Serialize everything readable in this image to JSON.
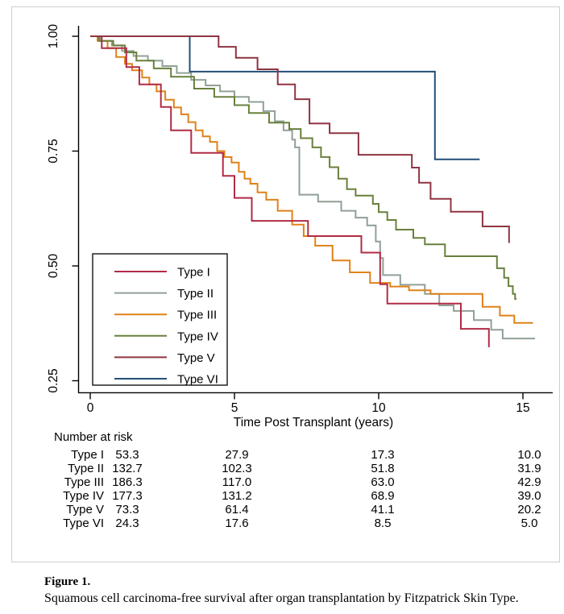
{
  "chart_data": {
    "type": "line",
    "subtype": "kaplan-meier-step",
    "title": "",
    "xlabel": "Time Post Transplant (years)",
    "ylabel": "",
    "xlim": [
      0,
      15.6
    ],
    "ylim": [
      0.22,
      1.02
    ],
    "x_ticks": [
      "0",
      "5",
      "10",
      "15"
    ],
    "x_tick_values": [
      0,
      5,
      10,
      15
    ],
    "y_ticks": [
      "1.00",
      "0.75",
      "0.50",
      "0.25"
    ],
    "y_tick_values": [
      1.0,
      0.75,
      0.5,
      0.25
    ],
    "grid": false,
    "legend_position": "inside-lower-left",
    "series": [
      {
        "name": "Type I",
        "color": "#b12b45",
        "start": [
          0,
          1.0
        ],
        "end": 13.84,
        "steps": [
          [
            0.4,
            0.974
          ],
          [
            1.25,
            0.933
          ],
          [
            1.7,
            0.895
          ],
          [
            2.45,
            0.846
          ],
          [
            2.8,
            0.795
          ],
          [
            3.5,
            0.746
          ],
          [
            4.6,
            0.696
          ],
          [
            5.0,
            0.648
          ],
          [
            5.6,
            0.598
          ],
          [
            7.55,
            0.565
          ],
          [
            9.4,
            0.529
          ],
          [
            10.05,
            0.46
          ],
          [
            10.3,
            0.418
          ],
          [
            12.85,
            0.363
          ],
          [
            13.82,
            0.323
          ]
        ]
      },
      {
        "name": "Type II",
        "color": "#90a096",
        "start": [
          0,
          1.0
        ],
        "end": 15.42,
        "steps": [
          [
            0.35,
            0.99
          ],
          [
            0.75,
            0.98
          ],
          [
            1.1,
            0.968
          ],
          [
            1.5,
            0.957
          ],
          [
            2.0,
            0.947
          ],
          [
            2.5,
            0.935
          ],
          [
            3.0,
            0.92
          ],
          [
            3.5,
            0.905
          ],
          [
            4.0,
            0.893
          ],
          [
            4.5,
            0.88
          ],
          [
            5.0,
            0.868
          ],
          [
            5.5,
            0.857
          ],
          [
            6.0,
            0.837
          ],
          [
            6.4,
            0.815
          ],
          [
            6.7,
            0.795
          ],
          [
            7.0,
            0.775
          ],
          [
            7.1,
            0.758
          ],
          [
            7.25,
            0.655
          ],
          [
            7.9,
            0.64
          ],
          [
            8.7,
            0.62
          ],
          [
            9.2,
            0.605
          ],
          [
            9.6,
            0.588
          ],
          [
            9.9,
            0.553
          ],
          [
            10.05,
            0.517
          ],
          [
            10.15,
            0.48
          ],
          [
            10.75,
            0.459
          ],
          [
            11.6,
            0.439
          ],
          [
            12.1,
            0.414
          ],
          [
            12.6,
            0.402
          ],
          [
            13.3,
            0.382
          ],
          [
            13.9,
            0.361
          ],
          [
            14.3,
            0.342
          ]
        ]
      },
      {
        "name": "Type III",
        "color": "#e08119",
        "start": [
          0,
          1.0
        ],
        "end": 15.35,
        "steps": [
          [
            0.25,
            0.99
          ],
          [
            0.6,
            0.974
          ],
          [
            0.9,
            0.955
          ],
          [
            1.2,
            0.94
          ],
          [
            1.45,
            0.926
          ],
          [
            1.8,
            0.91
          ],
          [
            2.05,
            0.895
          ],
          [
            2.3,
            0.88
          ],
          [
            2.6,
            0.862
          ],
          [
            2.9,
            0.845
          ],
          [
            3.15,
            0.83
          ],
          [
            3.4,
            0.813
          ],
          [
            3.65,
            0.795
          ],
          [
            3.9,
            0.782
          ],
          [
            4.15,
            0.77
          ],
          [
            4.4,
            0.75
          ],
          [
            4.65,
            0.737
          ],
          [
            4.9,
            0.725
          ],
          [
            5.15,
            0.705
          ],
          [
            5.35,
            0.69
          ],
          [
            5.55,
            0.679
          ],
          [
            5.8,
            0.66
          ],
          [
            6.1,
            0.644
          ],
          [
            6.5,
            0.62
          ],
          [
            7.0,
            0.59
          ],
          [
            7.4,
            0.565
          ],
          [
            7.8,
            0.544
          ],
          [
            8.4,
            0.512
          ],
          [
            9.0,
            0.486
          ],
          [
            9.7,
            0.463
          ],
          [
            10.4,
            0.455
          ],
          [
            11.05,
            0.447
          ],
          [
            11.8,
            0.439
          ],
          [
            13.6,
            0.411
          ],
          [
            14.2,
            0.392
          ],
          [
            14.7,
            0.376
          ]
        ]
      },
      {
        "name": "Type IV",
        "color": "#68803c",
        "start": [
          0,
          1.0
        ],
        "end": 14.78,
        "steps": [
          [
            0.3,
            0.99
          ],
          [
            0.8,
            0.98
          ],
          [
            1.2,
            0.965
          ],
          [
            1.6,
            0.947
          ],
          [
            2.2,
            0.93
          ],
          [
            2.8,
            0.912
          ],
          [
            3.6,
            0.886
          ],
          [
            4.3,
            0.868
          ],
          [
            5.0,
            0.85
          ],
          [
            5.5,
            0.833
          ],
          [
            6.2,
            0.812
          ],
          [
            6.9,
            0.798
          ],
          [
            7.3,
            0.778
          ],
          [
            7.7,
            0.758
          ],
          [
            8.0,
            0.737
          ],
          [
            8.3,
            0.715
          ],
          [
            8.6,
            0.69
          ],
          [
            8.9,
            0.667
          ],
          [
            9.2,
            0.653
          ],
          [
            9.8,
            0.635
          ],
          [
            10.0,
            0.617
          ],
          [
            10.3,
            0.6
          ],
          [
            10.6,
            0.579
          ],
          [
            11.2,
            0.561
          ],
          [
            11.6,
            0.547
          ],
          [
            12.3,
            0.521
          ],
          [
            14.1,
            0.495
          ],
          [
            14.35,
            0.474
          ],
          [
            14.5,
            0.456
          ],
          [
            14.65,
            0.439
          ],
          [
            14.73,
            0.428
          ]
        ]
      },
      {
        "name": "Type V",
        "color": "#8f3442",
        "start": [
          0,
          1.0
        ],
        "end": 14.52,
        "steps": [
          [
            4.45,
            0.977
          ],
          [
            5.05,
            0.953
          ],
          [
            5.8,
            0.928
          ],
          [
            6.5,
            0.895
          ],
          [
            7.1,
            0.863
          ],
          [
            7.6,
            0.81
          ],
          [
            8.3,
            0.789
          ],
          [
            9.3,
            0.742
          ],
          [
            11.15,
            0.714
          ],
          [
            11.4,
            0.681
          ],
          [
            11.8,
            0.646
          ],
          [
            12.5,
            0.618
          ],
          [
            13.6,
            0.586
          ],
          [
            14.52,
            0.55
          ]
        ]
      },
      {
        "name": "Type VI",
        "color": "#244e78",
        "start": [
          0,
          1.0
        ],
        "end": 13.5,
        "steps": [
          [
            3.45,
            0.923
          ],
          [
            11.95,
            0.732
          ]
        ]
      }
    ]
  },
  "risk_table": {
    "heading": "Number at risk",
    "time_points": [
      0,
      5,
      10,
      15
    ],
    "rows": [
      {
        "label": "Type I",
        "values": [
          "53.3",
          "27.9",
          "17.3",
          "10.0"
        ]
      },
      {
        "label": "Type II",
        "values": [
          "132.7",
          "102.3",
          "51.8",
          "31.9"
        ]
      },
      {
        "label": "Type III",
        "values": [
          "186.3",
          "117.0",
          "63.0",
          "42.9"
        ]
      },
      {
        "label": "Type IV",
        "values": [
          "177.3",
          "131.2",
          "68.9",
          "39.0"
        ]
      },
      {
        "label": "Type V",
        "values": [
          "73.3",
          "61.4",
          "41.1",
          "20.2"
        ]
      },
      {
        "label": "Type VI",
        "values": [
          "24.3",
          "17.6",
          "8.5",
          "5.0"
        ]
      }
    ]
  },
  "caption": {
    "label": "Figure 1.",
    "text": "Squamous cell carcinoma-free survival after organ transplantation by Fitzpatrick Skin Type."
  }
}
